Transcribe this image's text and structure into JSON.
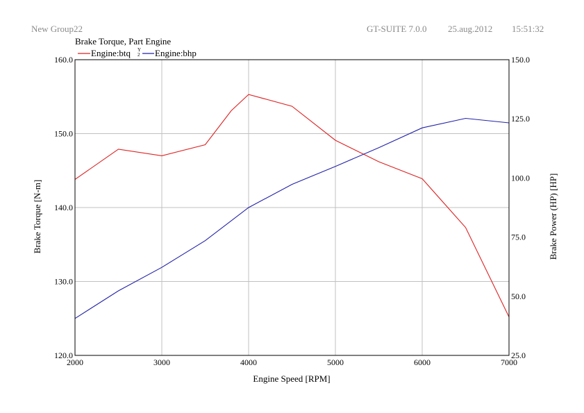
{
  "header": {
    "group": "New Group22",
    "software": "GT-SUITE 7.0.0",
    "date": "25.aug.2012",
    "time": "15:51:32"
  },
  "chart_data": {
    "type": "line",
    "title": "Brake Torque, Part Engine",
    "xlabel": "Engine Speed [RPM]",
    "ylabel_left": "Brake Torque [N-m]",
    "ylabel_right": "Brake Power (HP) [HP]",
    "xlim": [
      2000,
      7000
    ],
    "ylim_left": [
      120,
      160
    ],
    "ylim_right": [
      25,
      150
    ],
    "x_ticks": [
      "2000",
      "3000",
      "4000",
      "5000",
      "6000",
      "7000"
    ],
    "y_ticks_left": [
      "120.0",
      "130.0",
      "140.0",
      "150.0",
      "160.0"
    ],
    "y_ticks_right": [
      "25.0",
      "50.0",
      "75.0",
      "100.0",
      "125.0",
      "150.0"
    ],
    "grid": true,
    "legend_placement": "top-left",
    "legend_axis_marker": "Y\n2",
    "series": [
      {
        "name": "Engine:btq",
        "axis": "left",
        "color": "#dd2222",
        "x": [
          2000,
          2500,
          3000,
          3500,
          3800,
          4000,
          4500,
          5000,
          5500,
          6000,
          6500,
          7000
        ],
        "y": [
          143.8,
          147.9,
          147.0,
          148.5,
          153.1,
          155.3,
          153.7,
          149.1,
          146.2,
          143.9,
          137.3,
          125.2
        ]
      },
      {
        "name": "Engine:bhp",
        "axis": "right",
        "color": "#2222aa",
        "x": [
          2000,
          2500,
          3000,
          3500,
          4000,
          4500,
          5000,
          5500,
          6000,
          6500,
          7000
        ],
        "y": [
          40.6,
          52.3,
          62.2,
          73.5,
          87.5,
          97.3,
          104.9,
          112.8,
          121.2,
          125.2,
          123.3
        ]
      }
    ]
  }
}
